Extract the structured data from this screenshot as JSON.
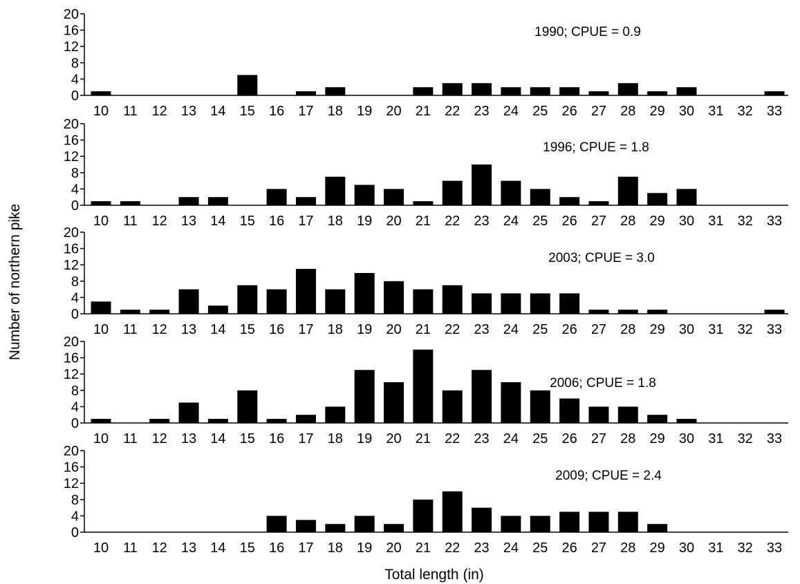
{
  "chart_data": {
    "type": "bar",
    "xlabel": "Total length (in)",
    "ylabel": "Number of northern pike",
    "ylim": [
      0,
      20
    ],
    "yticks": [
      0,
      4,
      8,
      12,
      16,
      20
    ],
    "grid": false,
    "bar_color": "#000000",
    "categories": [
      "10",
      "11",
      "12",
      "13",
      "14",
      "15",
      "16",
      "17",
      "18",
      "19",
      "20",
      "21",
      "22",
      "23",
      "24",
      "25",
      "26",
      "27",
      "28",
      "29",
      "30",
      "31",
      "32",
      "33"
    ],
    "panels": [
      {
        "annotation": "1990; CPUE = 0.9",
        "values": [
          1,
          0,
          0,
          0,
          0,
          5,
          0,
          1,
          2,
          0,
          0,
          2,
          3,
          3,
          2,
          2,
          2,
          1,
          3,
          1,
          2,
          0,
          0,
          1
        ]
      },
      {
        "annotation": "1996; CPUE = 1.8",
        "values": [
          1,
          1,
          0,
          2,
          2,
          0,
          4,
          2,
          7,
          5,
          4,
          1,
          6,
          10,
          6,
          4,
          2,
          1,
          7,
          3,
          4,
          0,
          0,
          0
        ]
      },
      {
        "annotation": "2003; CPUE = 3.0",
        "values": [
          3,
          1,
          1,
          6,
          2,
          7,
          6,
          11,
          6,
          10,
          8,
          6,
          7,
          5,
          5,
          5,
          5,
          1,
          1,
          1,
          0,
          0,
          0,
          1
        ]
      },
      {
        "annotation": "2006; CPUE = 1.8",
        "values": [
          1,
          0,
          1,
          5,
          1,
          8,
          1,
          2,
          4,
          13,
          10,
          18,
          8,
          13,
          10,
          8,
          6,
          4,
          4,
          2,
          1,
          0,
          0,
          0
        ]
      },
      {
        "annotation": "2009;  CPUE  =  2.4",
        "values": [
          0,
          0,
          0,
          0,
          0,
          0,
          4,
          3,
          2,
          4,
          2,
          8,
          10,
          6,
          4,
          4,
          5,
          5,
          5,
          2,
          0,
          0,
          0,
          0
        ]
      }
    ]
  }
}
